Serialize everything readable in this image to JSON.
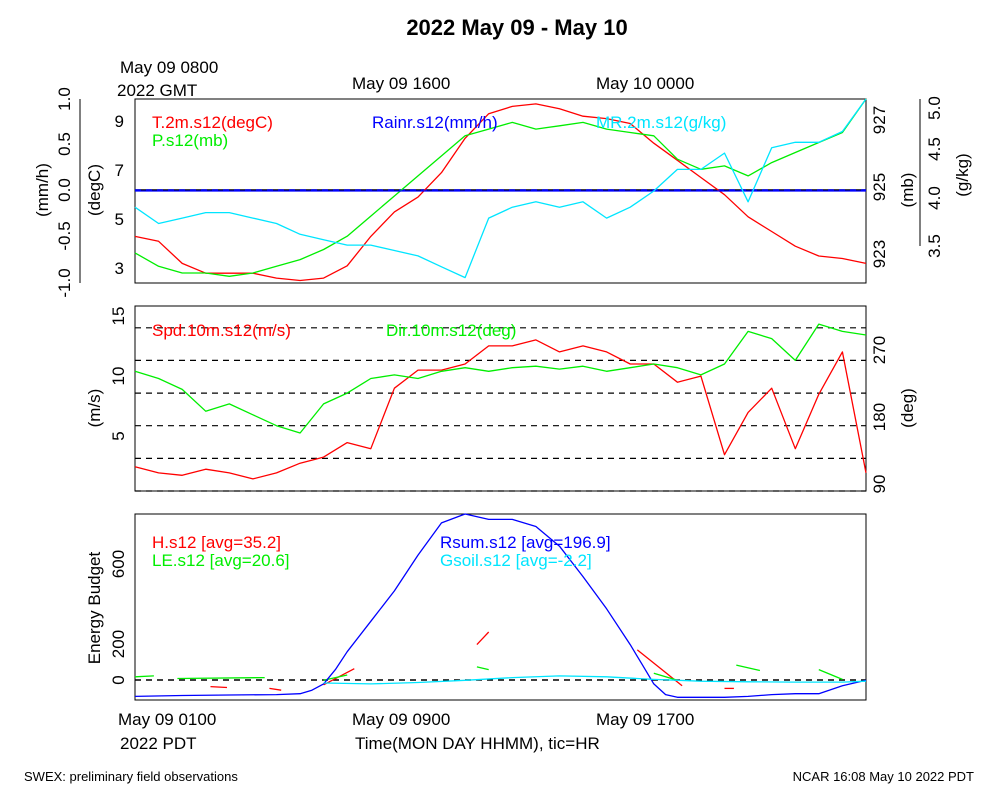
{
  "title": "2022 May 09 - May 10",
  "top_time": {
    "line1": "May 09 0800",
    "line2": "2022 GMT",
    "ticks": [
      "May 09 1600",
      "May 10 0000"
    ]
  },
  "bottom_time": {
    "line1": "May 09 0100",
    "line2": "2022 PDT",
    "ticks": [
      "May 09 0900",
      "May 09 1700"
    ],
    "xlabel": "Time(MON DAY HHMM), tic=HR"
  },
  "footer": {
    "left": "SWEX: preliminary field observations",
    "right": "NCAR 16:08 May 10 2022 PDT"
  },
  "colors": {
    "red": "#ff0000",
    "green": "#00ee00",
    "blue": "#0000ff",
    "cyan": "#00e5ff",
    "black": "#000000"
  },
  "chart_data": [
    {
      "type": "line",
      "x_unit": "hours since May 09 0100 PDT",
      "xlim": [
        0,
        31
      ],
      "axes": {
        "left_outer": {
          "label": "(mm/h)",
          "ticks": [
            "-1.0",
            "-0.5",
            "0.0",
            "0.5",
            "1.0"
          ],
          "ylim": [
            -1,
            1
          ]
        },
        "left_inner": {
          "label": "(degC)",
          "ticks": [
            "3",
            "5",
            "7",
            "9"
          ],
          "ylim": [
            2.5,
            10
          ]
        },
        "right_inner": {
          "label": "(mb)",
          "ticks": [
            "923",
            "925",
            "927"
          ],
          "ylim": [
            922.5,
            928
          ]
        },
        "right_outer": {
          "label": "(g/kg)",
          "ticks": [
            "3.5",
            "4.0",
            "4.5",
            "5.0"
          ],
          "ylim": [
            3.3,
            5.0
          ]
        }
      },
      "series": [
        {
          "name": "T.2m.s12(degC)",
          "color": "red",
          "axis": "left_inner",
          "x": [
            0,
            1,
            2,
            3,
            4,
            5,
            6,
            7,
            8,
            9,
            10,
            11,
            12,
            13,
            14,
            15,
            16,
            17,
            18,
            19,
            20,
            21,
            22,
            23,
            24,
            25,
            26,
            27,
            28,
            29,
            30,
            31
          ],
          "y": [
            4.4,
            4.2,
            3.3,
            2.9,
            2.9,
            2.9,
            2.7,
            2.6,
            2.7,
            3.2,
            4.4,
            5.4,
            6.0,
            7.0,
            8.4,
            9.4,
            9.7,
            9.8,
            9.6,
            9.3,
            9.2,
            9.0,
            8.2,
            7.5,
            6.8,
            6.1,
            5.2,
            4.6,
            4.0,
            3.6,
            3.5,
            3.3
          ]
        },
        {
          "name": "P.s12(mb)",
          "color": "green",
          "axis": "right_inner",
          "x": [
            0,
            1,
            2,
            3,
            4,
            5,
            6,
            7,
            8,
            9,
            10,
            11,
            12,
            13,
            14,
            15,
            16,
            17,
            18,
            19,
            20,
            21,
            22,
            23,
            24,
            25,
            26,
            27,
            28,
            29,
            30,
            31
          ],
          "y": [
            923.4,
            923.0,
            922.8,
            922.8,
            922.7,
            922.8,
            923.0,
            923.2,
            923.5,
            923.9,
            924.5,
            925.1,
            925.7,
            926.3,
            926.9,
            927.1,
            927.3,
            927.1,
            927.2,
            927.3,
            927.1,
            927.0,
            926.9,
            926.2,
            925.9,
            926.0,
            925.7,
            926.1,
            926.4,
            926.7,
            927.0,
            928.0
          ]
        },
        {
          "name": "Rainr.s12(mm/h)",
          "color": "blue",
          "axis": "left_outer",
          "x": [
            0,
            31
          ],
          "y": [
            0.0,
            0.0
          ]
        },
        {
          "name": "MR.2m.s12(g/kg)",
          "color": "cyan",
          "axis": "right_outer",
          "x": [
            0,
            1,
            2,
            3,
            4,
            5,
            6,
            7,
            8,
            9,
            10,
            11,
            12,
            13,
            14,
            15,
            16,
            17,
            18,
            19,
            20,
            21,
            22,
            23,
            24,
            25,
            26,
            27,
            28,
            29,
            30,
            31
          ],
          "y": [
            4.0,
            3.85,
            3.9,
            3.95,
            3.95,
            3.9,
            3.85,
            3.75,
            3.7,
            3.65,
            3.65,
            3.6,
            3.55,
            3.45,
            3.35,
            3.9,
            4.0,
            4.05,
            4.0,
            4.05,
            3.9,
            4.0,
            4.15,
            4.35,
            4.35,
            4.5,
            4.05,
            4.55,
            4.6,
            4.6,
            4.7,
            5.0
          ]
        }
      ],
      "legend": [
        "T.2m.s12(degC)",
        "P.s12(mb)",
        "Rainr.s12(mm/h)",
        "MR.2m.s12(g/kg)"
      ]
    },
    {
      "type": "line",
      "x_unit": "hours since May 09 0100 PDT",
      "xlim": [
        0,
        31
      ],
      "axes": {
        "left": {
          "label": "(m/s)",
          "ticks": [
            "5",
            "10",
            "15"
          ],
          "ylim": [
            0.5,
            15.8
          ]
        },
        "right": {
          "label": "(deg)",
          "ticks": [
            "90",
            "180",
            "270"
          ],
          "ylim": [
            90,
            345
          ]
        }
      },
      "dashed_levels": [
        90,
        135,
        180,
        225,
        270,
        315
      ],
      "series": [
        {
          "name": "Spd.10m.s12(m/s)",
          "color": "red",
          "axis": "left",
          "x": [
            0,
            1,
            2,
            3,
            4,
            5,
            6,
            7,
            8,
            9,
            10,
            11,
            12,
            13,
            14,
            15,
            16,
            17,
            18,
            19,
            20,
            21,
            22,
            23,
            24,
            25,
            26,
            27,
            28,
            29,
            30,
            31
          ],
          "y": [
            2.5,
            2.0,
            1.8,
            2.3,
            2.0,
            1.5,
            2.0,
            2.8,
            3.3,
            4.5,
            4.0,
            9.0,
            10.5,
            10.5,
            11.0,
            12.5,
            12.5,
            13.0,
            12.0,
            12.5,
            12.0,
            11.0,
            11.0,
            9.5,
            10.0,
            3.5,
            7.0,
            9.0,
            4.0,
            8.5,
            12.0,
            2.0
          ]
        },
        {
          "name": "Dir.10m.s12(deg)",
          "color": "green",
          "axis": "right",
          "x": [
            0,
            1,
            2,
            3,
            4,
            5,
            6,
            7,
            8,
            9,
            10,
            11,
            12,
            13,
            14,
            15,
            16,
            17,
            18,
            19,
            20,
            21,
            22,
            23,
            24,
            25,
            26,
            27,
            28,
            29,
            30,
            31
          ],
          "y": [
            255,
            245,
            230,
            200,
            210,
            195,
            180,
            170,
            210,
            225,
            245,
            250,
            245,
            255,
            260,
            255,
            260,
            262,
            258,
            262,
            255,
            260,
            265,
            260,
            250,
            265,
            310,
            300,
            270,
            320,
            310,
            305
          ]
        }
      ],
      "legend": [
        "Spd.10m.s12(m/s)",
        "Dir.10m.s12(deg)"
      ]
    },
    {
      "type": "line",
      "x_unit": "hours since May 09 0100 PDT",
      "xlim": [
        0,
        31
      ],
      "axes": {
        "left": {
          "label": "Energy Budget",
          "ticks": [
            "0",
            "200",
            "600"
          ],
          "ylim": [
            -110,
            930
          ]
        }
      },
      "dashed_levels": [
        0
      ],
      "series": [
        {
          "name": "H.s12 [avg=35.2]",
          "color": "red",
          "segments": [
            {
              "x": [
                3.2,
                3.9
              ],
              "y": [
                -35,
                -40
              ]
            },
            {
              "x": [
                5.7,
                6.2
              ],
              "y": [
                -45,
                -55
              ]
            },
            {
              "x": [
                8.0,
                9.3
              ],
              "y": [
                -25,
                65
              ]
            },
            {
              "x": [
                14.5,
                15.0
              ],
              "y": [
                200,
                270
              ]
            },
            {
              "x": [
                21.3,
                23.2
              ],
              "y": [
                170,
                -30
              ]
            },
            {
              "x": [
                25.0,
                25.4
              ],
              "y": [
                -45,
                -45
              ]
            }
          ]
        },
        {
          "name": "LE.s12 [avg=20.6]",
          "color": "green",
          "segments": [
            {
              "x": [
                0.0,
                0.8
              ],
              "y": [
                20,
                25
              ]
            },
            {
              "x": [
                1.8,
                5.5
              ],
              "y": [
                10,
                15
              ]
            },
            {
              "x": [
                8.0,
                9.0
              ],
              "y": [
                0,
                30
              ]
            },
            {
              "x": [
                14.5,
                15.0
              ],
              "y": [
                75,
                60
              ]
            },
            {
              "x": [
                22.0,
                23.0
              ],
              "y": [
                40,
                0
              ]
            },
            {
              "x": [
                25.5,
                26.5
              ],
              "y": [
                85,
                55
              ]
            },
            {
              "x": [
                29.0,
                30.0
              ],
              "y": [
                60,
                5
              ]
            }
          ]
        },
        {
          "name": "Rsum.s12 [avg=196.9]",
          "color": "blue",
          "x": [
            0,
            2,
            4,
            6,
            7,
            7.5,
            8,
            8.5,
            9,
            10,
            11,
            12,
            13,
            14,
            15,
            16,
            17,
            18,
            19,
            20,
            21,
            21.5,
            22,
            22.5,
            23,
            24,
            25,
            26,
            27,
            28,
            29,
            30,
            31
          ],
          "y": [
            -90,
            -85,
            -82,
            -80,
            -75,
            -55,
            -20,
            60,
            160,
            330,
            500,
            700,
            880,
            930,
            900,
            900,
            860,
            750,
            580,
            400,
            200,
            90,
            -20,
            -80,
            -95,
            -95,
            -95,
            -90,
            -80,
            -75,
            -75,
            -30,
            0
          ]
        },
        {
          "name": "Gsoil.s12 [avg=-2.2]",
          "color": "cyan",
          "x": [
            8,
            10,
            12,
            14,
            16,
            18,
            20,
            22,
            24,
            26,
            28,
            30,
            31
          ],
          "y": [
            -15,
            -20,
            -12,
            0,
            15,
            25,
            20,
            5,
            -5,
            -8,
            -10,
            -10,
            -5
          ]
        }
      ],
      "legend": [
        "H.s12 [avg=35.2]",
        "LE.s12 [avg=20.6]",
        "Rsum.s12 [avg=196.9]",
        "Gsoil.s12 [avg=-2.2]"
      ]
    }
  ]
}
